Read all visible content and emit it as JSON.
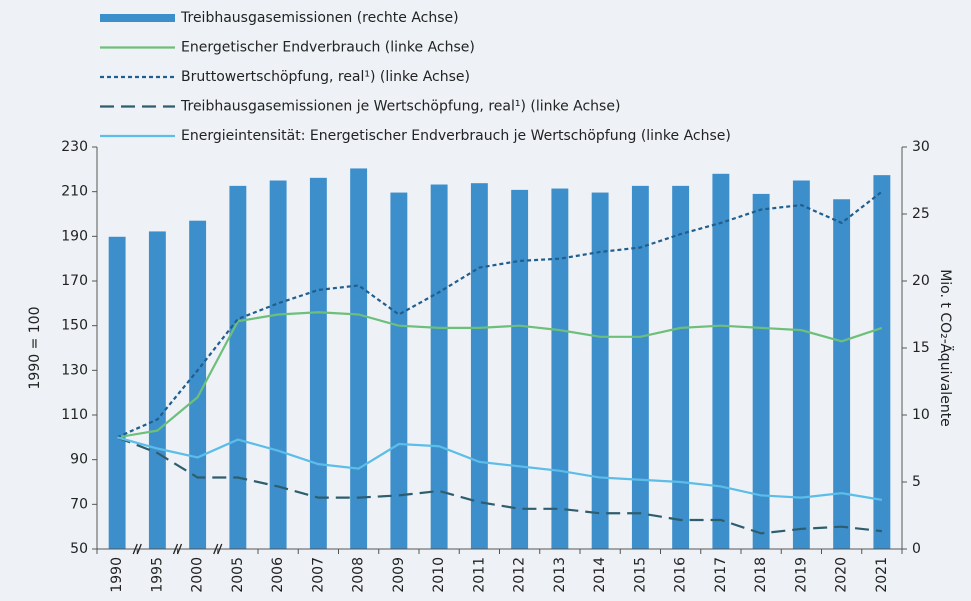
{
  "chart_data": {
    "type": "combo",
    "y_label": "1990 = 100",
    "y2_label": "Mio. t CO₂-Äquivalente",
    "categories": [
      "1990",
      "1995",
      "2000",
      "2005",
      "2006",
      "2007",
      "2008",
      "2009",
      "2010",
      "2011",
      "2012",
      "2013",
      "2014",
      "2015",
      "2016",
      "2017",
      "2018",
      "2019",
      "2020",
      "2021"
    ],
    "series": [
      {
        "name": "Treibhausgasemissionen (rechte Achse)",
        "type": "bar",
        "axis": "y2",
        "color": "#3d8fcc",
        "values": [
          23.3,
          23.7,
          24.5,
          27.1,
          27.5,
          27.7,
          28.4,
          26.6,
          27.2,
          27.3,
          26.8,
          26.9,
          26.6,
          27.1,
          27.1,
          28.0,
          26.5,
          27.5,
          26.1,
          27.9
        ]
      },
      {
        "name": "Energetischer Endverbrauch (linke Achse)",
        "type": "line",
        "dash": "solid",
        "color": "#6dbf7a",
        "values": [
          100,
          103,
          118,
          152,
          155,
          156,
          155,
          150,
          149,
          149,
          150,
          148,
          145,
          145,
          149,
          150,
          149,
          148,
          143,
          149
        ]
      },
      {
        "name": "Bruttowertschöpfung, real¹) (linke Achse)",
        "type": "line",
        "dash": "dotted",
        "color": "#1f5e8e",
        "values": [
          100,
          108,
          130,
          153,
          160,
          166,
          168,
          155,
          165,
          176,
          179,
          180,
          183,
          185,
          191,
          196,
          202,
          204,
          196,
          210
        ]
      },
      {
        "name": "Treibhausgasemissionen je Wertschöpfung, real¹) (linke Achse)",
        "type": "line",
        "dash": "dashed",
        "color": "#2e5e6e",
        "values": [
          100,
          93,
          82,
          82,
          78,
          73,
          73,
          74,
          76,
          71,
          68,
          68,
          66,
          66,
          63,
          63,
          57,
          59,
          60,
          58
        ]
      },
      {
        "name": "Energieintensität: Energetischer Endverbrauch je Wertschöpfung (linke Achse)",
        "type": "line",
        "dash": "solid",
        "color": "#5bbde8",
        "values": [
          100,
          95,
          91,
          99,
          94,
          88,
          86,
          97,
          96,
          89,
          87,
          85,
          82,
          81,
          80,
          78,
          74,
          73,
          75,
          72
        ]
      }
    ],
    "ylim": [
      50,
      230
    ],
    "yticks": [
      50,
      70,
      90,
      110,
      130,
      150,
      170,
      190,
      210,
      230
    ],
    "y2lim": [
      0,
      30
    ],
    "y2ticks": [
      0,
      5,
      10,
      15,
      20,
      25,
      30
    ],
    "legend": "top-left"
  }
}
